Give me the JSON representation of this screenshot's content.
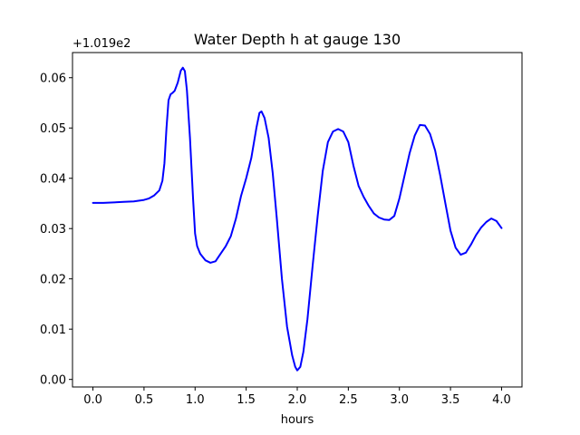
{
  "chart_data": {
    "type": "line",
    "title": "Water Depth h at gauge 130",
    "xlabel": "hours",
    "ylabel": "",
    "y_offset_label": "+1.019e2",
    "xlim": [
      -0.2,
      4.2
    ],
    "ylim": [
      -0.0015,
      0.065
    ],
    "x_ticks": [
      0.0,
      0.5,
      1.0,
      1.5,
      2.0,
      2.5,
      3.0,
      3.5,
      4.0
    ],
    "x_tick_labels": [
      "0.0",
      "0.5",
      "1.0",
      "1.5",
      "2.0",
      "2.5",
      "3.0",
      "3.5",
      "4.0"
    ],
    "y_ticks": [
      0.0,
      0.01,
      0.02,
      0.03,
      0.04,
      0.05,
      0.06
    ],
    "y_tick_labels": [
      "0.00",
      "0.01",
      "0.02",
      "0.03",
      "0.04",
      "0.05",
      "0.06"
    ],
    "grid": false,
    "series": [
      {
        "color": "#0000ff",
        "x": [
          0.0,
          0.1,
          0.2,
          0.3,
          0.4,
          0.5,
          0.55,
          0.6,
          0.65,
          0.68,
          0.7,
          0.72,
          0.74,
          0.76,
          0.78,
          0.8,
          0.83,
          0.86,
          0.88,
          0.9,
          0.92,
          0.95,
          0.98,
          1.0,
          1.02,
          1.05,
          1.1,
          1.15,
          1.2,
          1.25,
          1.3,
          1.35,
          1.4,
          1.45,
          1.5,
          1.55,
          1.6,
          1.63,
          1.65,
          1.68,
          1.72,
          1.76,
          1.8,
          1.85,
          1.9,
          1.95,
          1.98,
          2.0,
          2.03,
          2.06,
          2.1,
          2.15,
          2.2,
          2.25,
          2.3,
          2.35,
          2.4,
          2.45,
          2.5,
          2.55,
          2.6,
          2.65,
          2.7,
          2.75,
          2.8,
          2.85,
          2.9,
          2.95,
          3.0,
          3.05,
          3.1,
          3.15,
          3.2,
          3.25,
          3.3,
          3.35,
          3.4,
          3.45,
          3.5,
          3.55,
          3.6,
          3.65,
          3.7,
          3.75,
          3.8,
          3.85,
          3.9,
          3.95,
          4.0
        ],
        "y": [
          0.0351,
          0.0351,
          0.0352,
          0.0353,
          0.0354,
          0.0357,
          0.036,
          0.0366,
          0.0376,
          0.0395,
          0.043,
          0.05,
          0.0555,
          0.0567,
          0.057,
          0.0574,
          0.059,
          0.0614,
          0.062,
          0.0613,
          0.0575,
          0.048,
          0.036,
          0.029,
          0.0265,
          0.025,
          0.0237,
          0.0232,
          0.0235,
          0.025,
          0.0265,
          0.0285,
          0.032,
          0.0365,
          0.04,
          0.044,
          0.05,
          0.053,
          0.0533,
          0.052,
          0.048,
          0.041,
          0.032,
          0.02,
          0.0105,
          0.0048,
          0.0025,
          0.0018,
          0.0025,
          0.0055,
          0.012,
          0.0225,
          0.0325,
          0.0415,
          0.0472,
          0.0493,
          0.0498,
          0.0493,
          0.0472,
          0.0425,
          0.0385,
          0.0363,
          0.0345,
          0.033,
          0.0322,
          0.0318,
          0.0317,
          0.0325,
          0.036,
          0.0405,
          0.045,
          0.0485,
          0.0506,
          0.0505,
          0.0488,
          0.0455,
          0.0405,
          0.035,
          0.0296,
          0.0262,
          0.0248,
          0.0252,
          0.0268,
          0.0287,
          0.0302,
          0.0313,
          0.032,
          0.0315,
          0.0301
        ]
      }
    ]
  }
}
